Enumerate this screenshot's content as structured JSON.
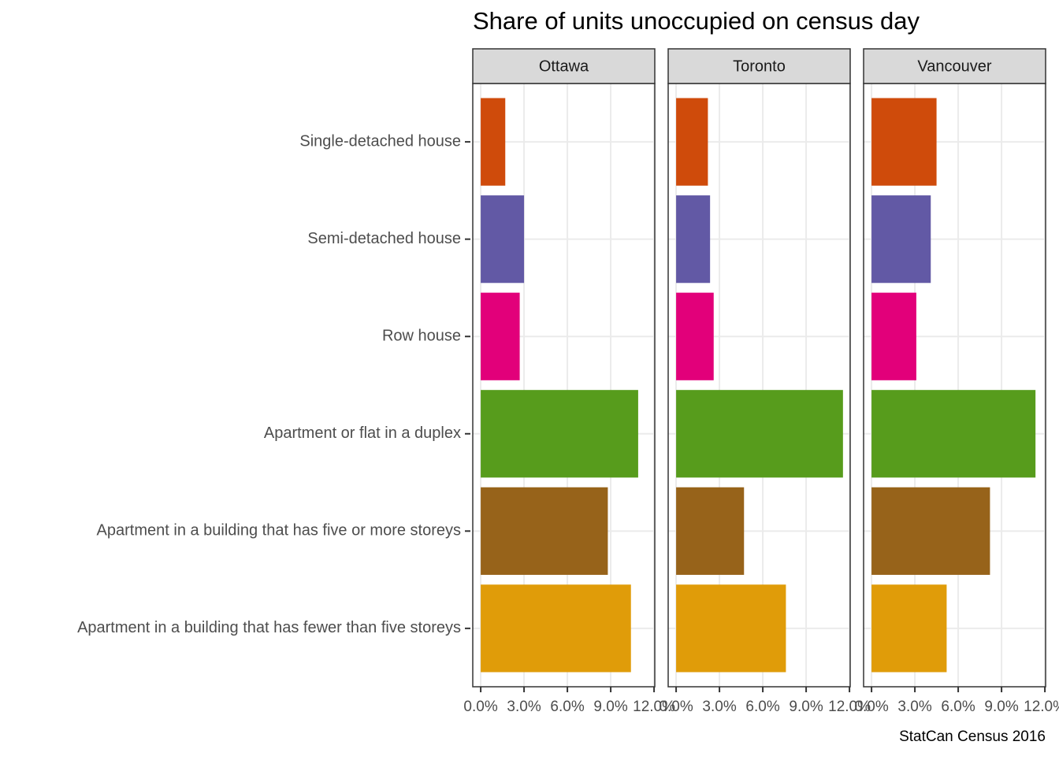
{
  "chart_data": {
    "type": "bar",
    "orientation": "horizontal",
    "title": "Share of units unoccupied on census day",
    "caption": "StatCan Census 2016",
    "categories": [
      "Single-detached house",
      "Semi-detached house",
      "Row house",
      "Apartment or flat in a duplex",
      "Apartment in a building that has five or more storeys",
      "Apartment in a building that has fewer than five storeys"
    ],
    "colors": [
      "#cf4b0b",
      "#6259a5",
      "#e2007a",
      "#579c1c",
      "#97631a",
      "#e09c09"
    ],
    "facets": [
      {
        "name": "Ottawa",
        "values": [
          1.7,
          3.0,
          2.7,
          10.9,
          8.8,
          10.4
        ]
      },
      {
        "name": "Toronto",
        "values": [
          2.2,
          2.35,
          2.6,
          11.55,
          4.7,
          7.6
        ]
      },
      {
        "name": "Vancouver",
        "values": [
          4.5,
          4.1,
          3.1,
          11.35,
          8.2,
          5.2
        ]
      }
    ],
    "xlim": [
      -0.55,
      12.05
    ],
    "xticks": [
      {
        "value": 0,
        "label": "0.0%"
      },
      {
        "value": 3,
        "label": "3.0%"
      },
      {
        "value": 6,
        "label": "6.0%"
      },
      {
        "value": 9,
        "label": "9.0%"
      },
      {
        "value": 12,
        "label": "12.0%"
      }
    ],
    "grid": true
  }
}
